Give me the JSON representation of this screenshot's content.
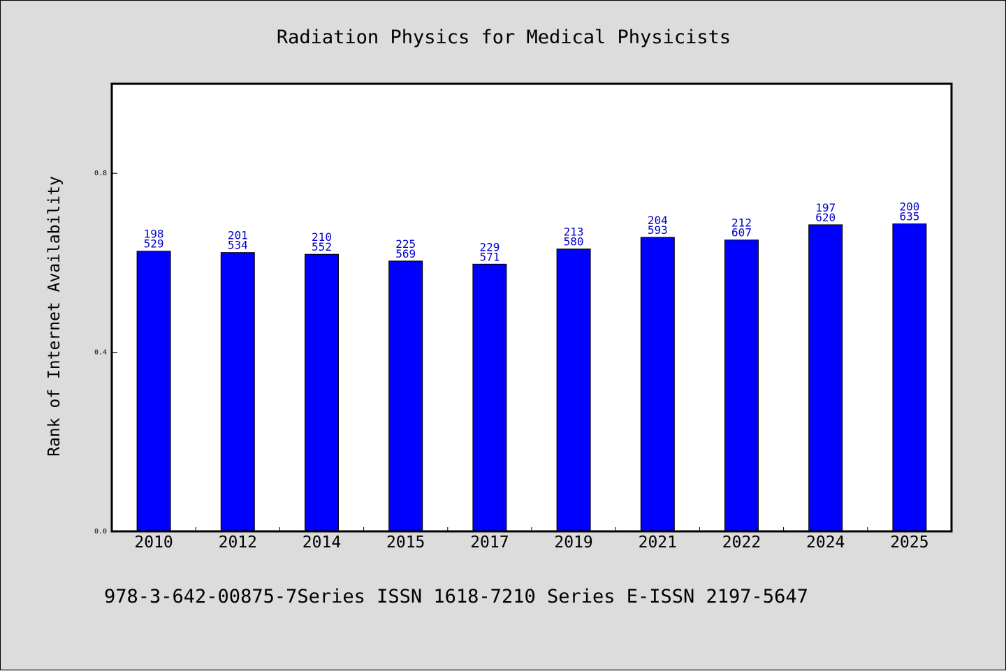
{
  "chart_data": {
    "type": "bar",
    "title": "Radiation Physics for Medical Physicists",
    "xlabel": "",
    "ylabel": "Rank of Internet Availability",
    "categories": [
      "2010",
      "2012",
      "2014",
      "2015",
      "2017",
      "2019",
      "2021",
      "2022",
      "2024",
      "2025"
    ],
    "values": [
      0.626,
      0.623,
      0.619,
      0.604,
      0.597,
      0.631,
      0.657,
      0.651,
      0.685,
      0.687
    ],
    "label_top": [
      "198",
      "201",
      "210",
      "225",
      "229",
      "213",
      "204",
      "212",
      "197",
      "200"
    ],
    "label_bottom": [
      "529",
      "534",
      "552",
      "569",
      "571",
      "580",
      "593",
      "607",
      "620",
      "635"
    ],
    "ylim": [
      0,
      1.0
    ],
    "yticks": [
      0.0,
      0.4,
      0.8
    ],
    "ytick_labels": [
      "0.0",
      "0.4",
      "0.8"
    ],
    "grid": false,
    "bar_color": "#0000ff",
    "label_color": "#0000cc",
    "footer": "978-3-642-00875-7Series ISSN 1618-7210 Series E-ISSN 2197-5647"
  }
}
